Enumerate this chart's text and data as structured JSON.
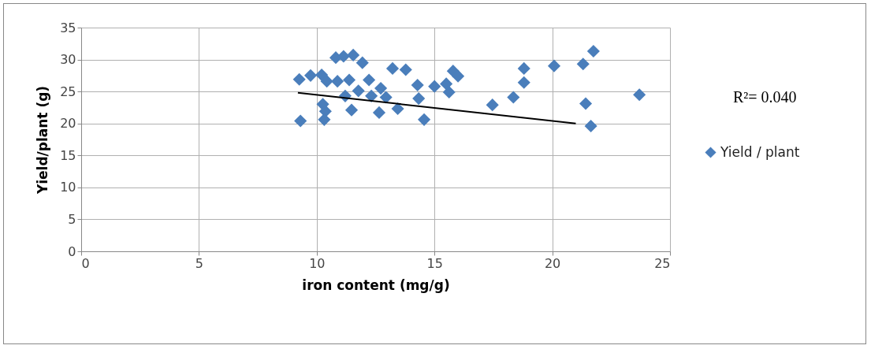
{
  "chart_data": {
    "type": "scatter",
    "xlabel": "iron content (mg/g)",
    "ylabel": "Yield/plant (g)",
    "xlim": [
      0,
      25
    ],
    "xticks": [
      0,
      5,
      10,
      15,
      20,
      25
    ],
    "ylim": [
      0,
      35
    ],
    "yticks": [
      0,
      5,
      10,
      15,
      20,
      25,
      30,
      35
    ],
    "grid": true,
    "legend": "right",
    "annotations": [
      "R²= 0.040"
    ],
    "series": [
      {
        "name": "Yield / plant",
        "color": "#4a7ebb",
        "marker": "diamond",
        "x": [
          9.26,
          9.74,
          10.21,
          10.43,
          10.26,
          10.37,
          10.32,
          9.31,
          10.81,
          11.14,
          11.55,
          11.94,
          10.88,
          11.38,
          11.48,
          11.21,
          11.77,
          12.22,
          12.32,
          12.65,
          12.72,
          13.22,
          13.78,
          12.94,
          13.44,
          14.28,
          14.33,
          14.56,
          15.0,
          15.5,
          15.62,
          15.79,
          16.0,
          17.46,
          18.35,
          18.8,
          18.8,
          20.08,
          21.31,
          21.75,
          21.42,
          21.64,
          23.7
        ],
        "values": [
          26.9,
          27.5,
          27.6,
          26.6,
          23.0,
          21.9,
          20.6,
          20.4,
          30.3,
          30.5,
          30.7,
          29.5,
          26.6,
          26.8,
          22.1,
          24.3,
          25.1,
          26.8,
          24.3,
          21.7,
          25.5,
          28.6,
          28.4,
          24.1,
          22.3,
          26.0,
          23.9,
          20.6,
          25.8,
          26.2,
          24.9,
          28.2,
          27.4,
          22.9,
          24.1,
          28.6,
          26.4,
          29.0,
          29.3,
          31.3,
          23.1,
          19.6,
          24.5
        ]
      },
      {
        "type": "line",
        "color": "#000000",
        "marker": "none",
        "x": [
          9.2,
          21.0
        ],
        "values": [
          24.8,
          20.0
        ]
      }
    ]
  }
}
